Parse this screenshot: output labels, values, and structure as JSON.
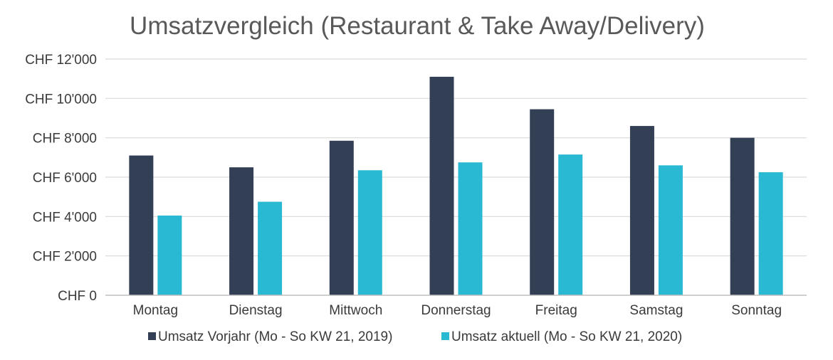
{
  "chart_data": {
    "type": "bar",
    "title": "Umsatzvergleich (Restaurant & Take Away/Delivery)",
    "xlabel": "",
    "ylabel": "",
    "ylim": [
      0,
      12000
    ],
    "yticks": [
      0,
      2000,
      4000,
      6000,
      8000,
      10000,
      12000
    ],
    "ytick_labels": [
      "CHF 0",
      "CHF 2'000",
      "CHF 4'000",
      "CHF 6'000",
      "CHF 8'000",
      "CHF 10'000",
      "CHF 12'000"
    ],
    "categories": [
      "Montag",
      "Dienstag",
      "Mittwoch",
      "Donnerstag",
      "Freitag",
      "Samstag",
      "Sonntag"
    ],
    "grid": true,
    "legend_position": "bottom",
    "series": [
      {
        "name": "Umsatz Vorjahr (Mo - So KW 21, 2019)",
        "color": "#333f55",
        "values": [
          7100,
          6500,
          7850,
          11100,
          9450,
          8600,
          8000
        ]
      },
      {
        "name": "Umsatz aktuell (Mo - So KW 21, 2020)",
        "color": "#29b9d3",
        "values": [
          4050,
          4750,
          6350,
          6750,
          7150,
          6600,
          6250
        ]
      }
    ]
  }
}
